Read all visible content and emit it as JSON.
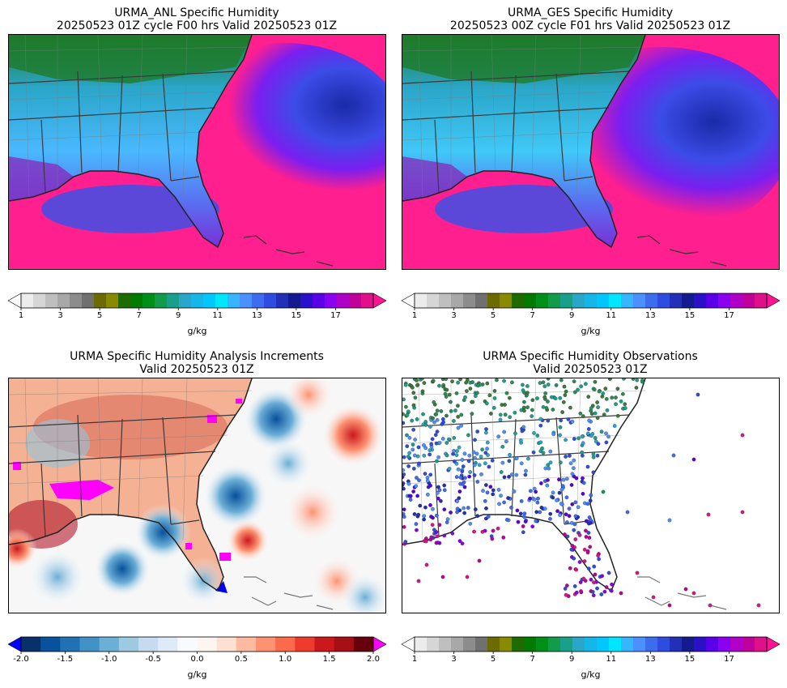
{
  "panels": [
    {
      "id": "anl",
      "title_line1": "URMA_ANL Specific Humidity",
      "title_line2": "20250523 01Z cycle F00 hrs Valid 20250523 01Z",
      "colorbar": {
        "ticks": [
          "1",
          "3",
          "5",
          "7",
          "9",
          "11",
          "13",
          "15",
          "17"
        ],
        "unit": "g/kg"
      }
    },
    {
      "id": "ges",
      "title_line1": "URMA_GES Specific Humidity",
      "title_line2": "20250523 00Z cycle F01 hrs Valid 20250523 01Z",
      "colorbar": {
        "ticks": [
          "1",
          "3",
          "5",
          "7",
          "9",
          "11",
          "13",
          "15",
          "17"
        ],
        "unit": "g/kg"
      }
    },
    {
      "id": "inc",
      "title_line1": "URMA Specific Humidity Analysis Increments",
      "title_line2": "Valid 20250523 01Z",
      "colorbar": {
        "ticks": [
          "-2.0",
          "-1.5",
          "-1.0",
          "-0.5",
          "0.0",
          "0.5",
          "1.0",
          "1.5",
          "2.0"
        ],
        "unit": "g/kg"
      }
    },
    {
      "id": "obs",
      "title_line1": "URMA Specific Humidity Observations",
      "title_line2": "Valid 20250523 01Z",
      "colorbar": {
        "ticks": [
          "1",
          "3",
          "5",
          "7",
          "9",
          "11",
          "13",
          "15",
          "17"
        ],
        "unit": "g/kg"
      }
    }
  ],
  "humidity_colors": [
    "#ffffff",
    "#ececec",
    "#d6d6d6",
    "#bfbfbf",
    "#a8a8a8",
    "#8c8c8c",
    "#707070",
    "#6b6b00",
    "#8a8a00",
    "#1f6b00",
    "#007a00",
    "#00901a",
    "#139a4a",
    "#1aa08a",
    "#2aa6c8",
    "#14b7e8",
    "#00c8ff",
    "#00e6ff",
    "#36b6ff",
    "#4a90ff",
    "#3c6cf0",
    "#2f4ce0",
    "#2230b8",
    "#141a90",
    "#2a10c8",
    "#5a00e8",
    "#8a00f0",
    "#b000c8",
    "#c0009a",
    "#e0108a",
    "#ff1493"
  ],
  "increment_colors": [
    "#0000ff",
    "#08306b",
    "#08519c",
    "#2171b5",
    "#4292c6",
    "#6baed6",
    "#9ecae1",
    "#c6dbef",
    "#deebf7",
    "#f7fbff",
    "#fff5f0",
    "#fee0d2",
    "#fcbba1",
    "#fc9272",
    "#fb6a4a",
    "#ef3b2c",
    "#cb181d",
    "#a50f15",
    "#67000d",
    "#ff00ff"
  ],
  "colors": {
    "land_green": "#1e8a2e",
    "land_cyan": "#3fd0ff",
    "land_blue": "#5a6cf0",
    "ocean_magenta": "#ff1f8f",
    "ocean_purple": "#7a1ff0",
    "border": "#555555"
  }
}
